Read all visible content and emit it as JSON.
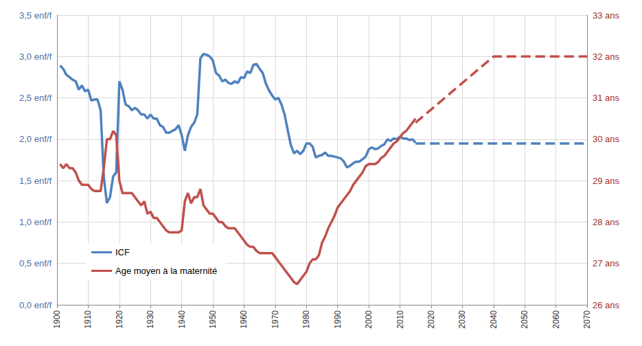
{
  "chart_data": {
    "type": "line",
    "grid": true,
    "legend": "lower left",
    "xlim": [
      1900,
      2070
    ],
    "xticks": [
      1900,
      1910,
      1920,
      1930,
      1940,
      1950,
      1960,
      1970,
      1980,
      1990,
      2000,
      2010,
      2020,
      2030,
      2040,
      2050,
      2060,
      2070
    ],
    "ylim": [
      0,
      3.5
    ],
    "yticks": [
      {
        "value": 0,
        "label": "0,0 enf/f"
      },
      {
        "value": 0.5,
        "label": "0,5 enf/f"
      },
      {
        "value": 1,
        "label": "1,0 enf/f"
      },
      {
        "value": 1.5,
        "label": "1,5 enf/f"
      },
      {
        "value": 2,
        "label": "2,0 enf/f"
      },
      {
        "value": 2.5,
        "label": "2,5 enf/f"
      },
      {
        "value": 3,
        "label": "3,0 enf/f"
      },
      {
        "value": 3.5,
        "label": "3,5 enf/f"
      }
    ],
    "y2lim": [
      26,
      33
    ],
    "y2ticks": [
      {
        "value": 26,
        "label": "26 ans"
      },
      {
        "value": 27,
        "label": "27 ans"
      },
      {
        "value": 28,
        "label": "28 ans"
      },
      {
        "value": 29,
        "label": "29 ans"
      },
      {
        "value": 30,
        "label": "30 ans"
      },
      {
        "value": 31,
        "label": "31 ans"
      },
      {
        "value": 32,
        "label": "32 ans"
      },
      {
        "value": 33,
        "label": "33 ans"
      }
    ],
    "series": [
      {
        "name": "ICF",
        "color": "#4f81bd",
        "line_style": "solid",
        "x": [
          1901,
          1902,
          1903,
          1904,
          1905,
          1906,
          1907,
          1908,
          1909,
          1910,
          1911,
          1912,
          1913,
          1914,
          1915,
          1916,
          1917,
          1918,
          1919,
          1920,
          1921,
          1922,
          1923,
          1924,
          1925,
          1926,
          1927,
          1928,
          1929,
          1930,
          1931,
          1932,
          1933,
          1934,
          1935,
          1936,
          1937,
          1938,
          1939,
          1940,
          1941,
          1942,
          1943,
          1944,
          1945,
          1946,
          1947,
          1948,
          1949,
          1950,
          1951,
          1952,
          1953,
          1954,
          1955,
          1956,
          1957,
          1958,
          1959,
          1960,
          1961,
          1962,
          1963,
          1964,
          1965,
          1966,
          1967,
          1968,
          1969,
          1970,
          1971,
          1972,
          1973,
          1974,
          1975,
          1976,
          1977,
          1978,
          1979,
          1980,
          1981,
          1982,
          1983,
          1984,
          1985,
          1986,
          1987,
          1988,
          1989,
          1990,
          1991,
          1992,
          1993,
          1994,
          1995,
          1996,
          1997,
          1998,
          1999,
          2000,
          2001,
          2002,
          2003,
          2004,
          2005,
          2006,
          2007,
          2008,
          2009,
          2010,
          2011,
          2012,
          2013,
          2014,
          2015
        ],
        "values": [
          2.89,
          2.85,
          2.78,
          2.75,
          2.72,
          2.7,
          2.6,
          2.65,
          2.58,
          2.6,
          2.47,
          2.48,
          2.48,
          2.35,
          1.55,
          1.23,
          1.3,
          1.55,
          1.6,
          2.7,
          2.6,
          2.42,
          2.4,
          2.35,
          2.38,
          2.35,
          2.3,
          2.3,
          2.25,
          2.3,
          2.25,
          2.25,
          2.17,
          2.15,
          2.08,
          2.08,
          2.1,
          2.12,
          2.17,
          2.05,
          1.86,
          2.05,
          2.15,
          2.2,
          2.3,
          2.98,
          3.03,
          3.02,
          3.0,
          2.95,
          2.8,
          2.77,
          2.7,
          2.72,
          2.68,
          2.67,
          2.7,
          2.68,
          2.75,
          2.74,
          2.82,
          2.8,
          2.9,
          2.91,
          2.85,
          2.8,
          2.67,
          2.59,
          2.53,
          2.48,
          2.5,
          2.42,
          2.3,
          2.11,
          1.93,
          1.83,
          1.86,
          1.82,
          1.86,
          1.95,
          1.95,
          1.91,
          1.78,
          1.8,
          1.81,
          1.84,
          1.8,
          1.8,
          1.79,
          1.78,
          1.77,
          1.73,
          1.66,
          1.68,
          1.71,
          1.73,
          1.73,
          1.76,
          1.79,
          1.88,
          1.9,
          1.88,
          1.89,
          1.92,
          1.94,
          2.0,
          1.98,
          2.01,
          2.0,
          2.03,
          2.01,
          2.01,
          1.99,
          2.0,
          1.96
        ]
      },
      {
        "name": "ICF",
        "color": "#4f81bd",
        "line_style": "dashed",
        "x": [
          2015,
          2070
        ],
        "values": [
          1.95,
          1.95
        ]
      },
      {
        "name": "Age moyen à la maternité",
        "color": "#c0504d",
        "line_style": "solid",
        "axis": "y2",
        "x": [
          1901,
          1902,
          1903,
          1904,
          1905,
          1906,
          1907,
          1908,
          1909,
          1910,
          1911,
          1912,
          1913,
          1914,
          1915,
          1916,
          1917,
          1918,
          1919,
          1920,
          1921,
          1922,
          1923,
          1924,
          1925,
          1926,
          1927,
          1928,
          1929,
          1930,
          1931,
          1932,
          1933,
          1934,
          1935,
          1936,
          1937,
          1938,
          1939,
          1940,
          1941,
          1942,
          1943,
          1944,
          1945,
          1946,
          1947,
          1948,
          1949,
          1950,
          1951,
          1952,
          1953,
          1954,
          1955,
          1956,
          1957,
          1958,
          1959,
          1960,
          1961,
          1962,
          1963,
          1964,
          1965,
          1966,
          1967,
          1968,
          1969,
          1970,
          1971,
          1972,
          1973,
          1974,
          1975,
          1976,
          1977,
          1978,
          1979,
          1980,
          1981,
          1982,
          1983,
          1984,
          1985,
          1986,
          1987,
          1988,
          1989,
          1990,
          1991,
          1992,
          1993,
          1994,
          1995,
          1996,
          1997,
          1998,
          1999,
          2000,
          2001,
          2002,
          2003,
          2004,
          2005,
          2006,
          2007,
          2008,
          2009,
          2010,
          2011,
          2012,
          2013,
          2014,
          2015
        ],
        "values": [
          29.4,
          29.3,
          29.4,
          29.3,
          29.3,
          29.2,
          29.0,
          28.9,
          28.9,
          28.9,
          28.8,
          28.75,
          28.75,
          28.75,
          29.3,
          30.0,
          30.0,
          30.2,
          30.1,
          29.0,
          28.7,
          28.7,
          28.7,
          28.7,
          28.6,
          28.5,
          28.4,
          28.5,
          28.2,
          28.25,
          28.1,
          28.1,
          28.0,
          27.9,
          27.8,
          27.75,
          27.75,
          27.75,
          27.75,
          27.8,
          28.5,
          28.7,
          28.45,
          28.6,
          28.6,
          28.8,
          28.4,
          28.3,
          28.2,
          28.2,
          28.1,
          28.0,
          28.0,
          27.9,
          27.85,
          27.85,
          27.85,
          27.75,
          27.65,
          27.55,
          27.45,
          27.4,
          27.4,
          27.3,
          27.25,
          27.25,
          27.25,
          27.25,
          27.25,
          27.15,
          27.05,
          26.95,
          26.85,
          26.75,
          26.65,
          26.55,
          26.5,
          26.6,
          26.7,
          26.8,
          27.0,
          27.1,
          27.1,
          27.2,
          27.5,
          27.65,
          27.85,
          28.0,
          28.15,
          28.35,
          28.45,
          28.55,
          28.65,
          28.75,
          28.9,
          29.0,
          29.1,
          29.2,
          29.35,
          29.4,
          29.4,
          29.4,
          29.45,
          29.55,
          29.6,
          29.7,
          29.8,
          29.9,
          29.95,
          30.05,
          30.15,
          30.2,
          30.3,
          30.4,
          30.5
        ]
      },
      {
        "name": "Age moyen à la maternité",
        "color": "#c0504d",
        "line_style": "dashed",
        "axis": "y2",
        "x": [
          2015,
          2040,
          2070
        ],
        "values": [
          30.4,
          32.0,
          32.0
        ]
      }
    ]
  }
}
